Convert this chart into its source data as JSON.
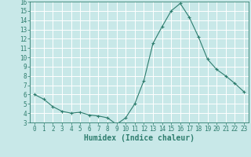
{
  "x": [
    0,
    1,
    2,
    3,
    4,
    5,
    6,
    7,
    8,
    9,
    10,
    11,
    12,
    13,
    14,
    15,
    16,
    17,
    18,
    19,
    20,
    21,
    22,
    23
  ],
  "y": [
    6.0,
    5.5,
    4.7,
    4.2,
    4.0,
    4.1,
    3.8,
    3.7,
    3.5,
    2.8,
    3.5,
    5.0,
    7.5,
    11.5,
    13.3,
    15.0,
    15.8,
    14.3,
    12.2,
    9.8,
    8.7,
    8.0,
    7.2,
    6.3
  ],
  "xlabel": "Humidex (Indice chaleur)",
  "ylim": [
    3,
    16
  ],
  "xlim": [
    -0.5,
    23.5
  ],
  "yticks": [
    3,
    4,
    5,
    6,
    7,
    8,
    9,
    10,
    11,
    12,
    13,
    14,
    15,
    16
  ],
  "xticks": [
    0,
    1,
    2,
    3,
    4,
    5,
    6,
    7,
    8,
    9,
    10,
    11,
    12,
    13,
    14,
    15,
    16,
    17,
    18,
    19,
    20,
    21,
    22,
    23
  ],
  "line_color": "#2e7d6e",
  "marker": "+",
  "bg_color": "#c8e8e8",
  "grid_color": "#ffffff",
  "tick_color": "#2e7d6e",
  "font_size": 5.5,
  "xlabel_fontsize": 7.0
}
